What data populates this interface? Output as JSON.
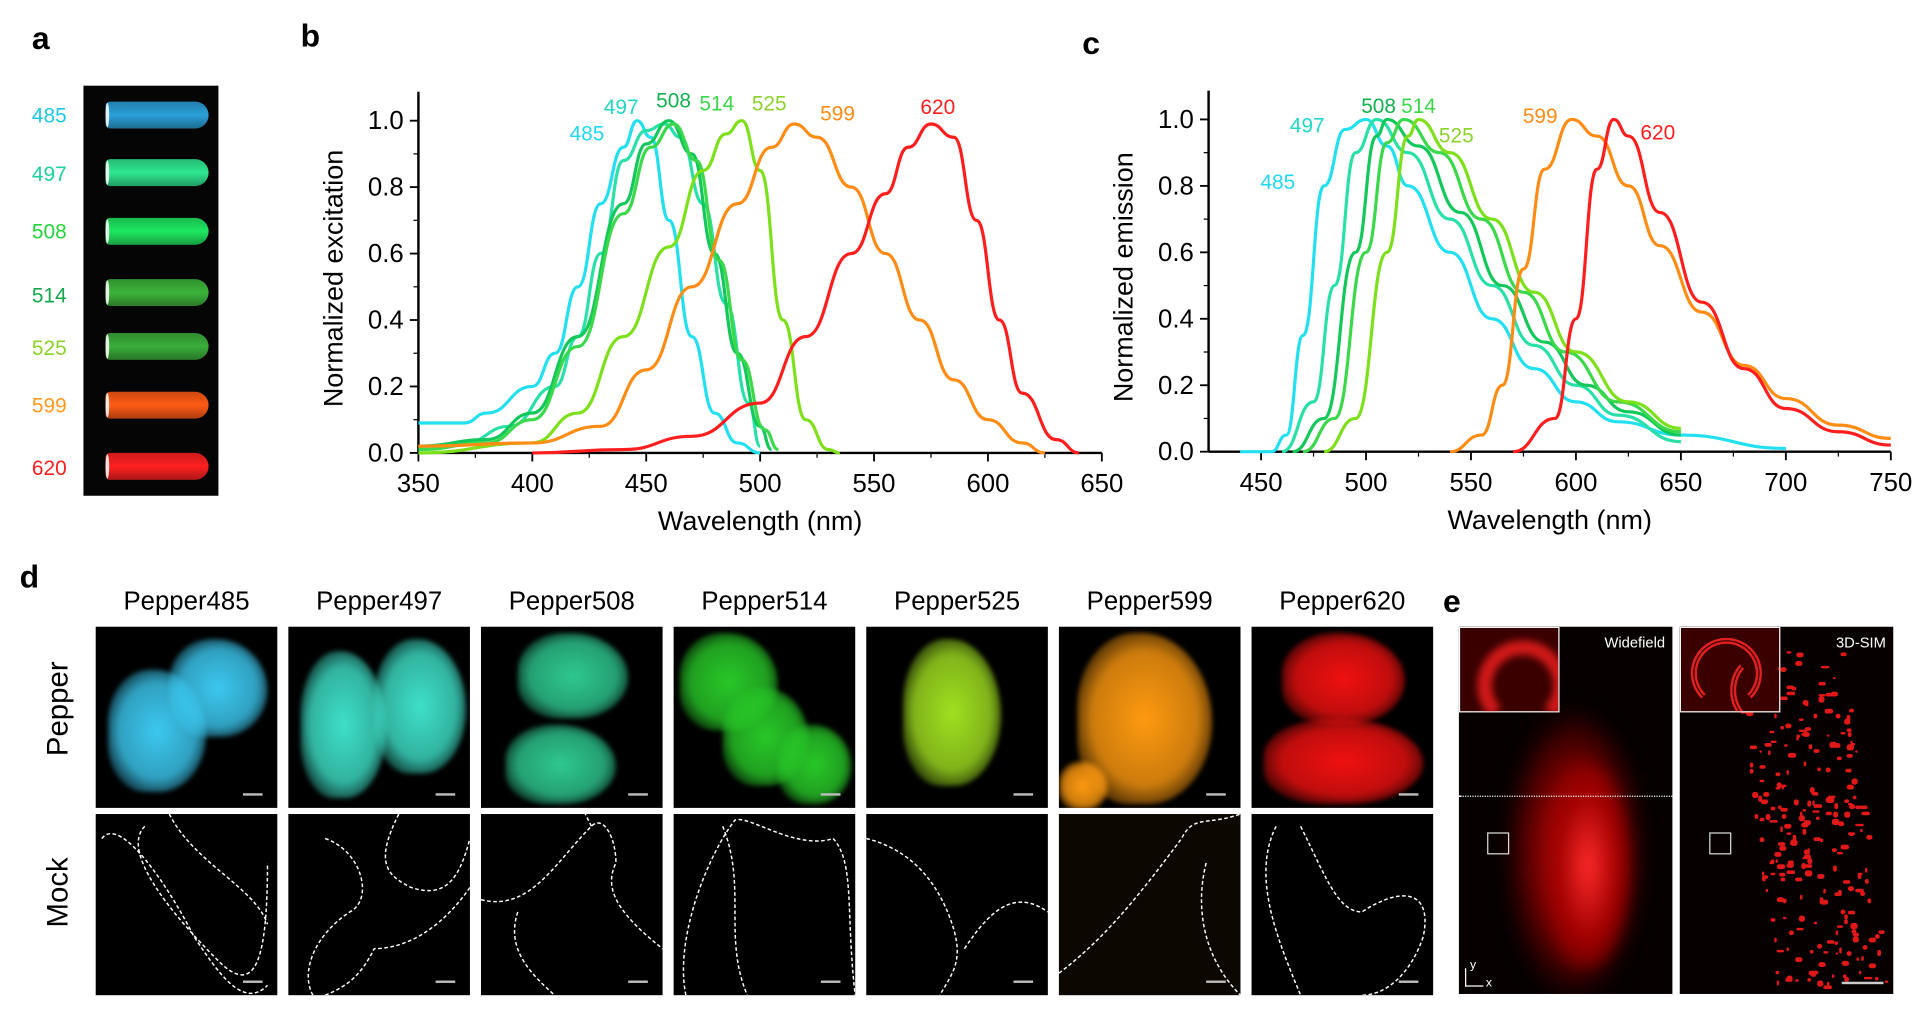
{
  "panel_labels": {
    "a": "a",
    "b": "b",
    "c": "c",
    "d": "d",
    "e": "e"
  },
  "tubes": [
    {
      "label": "485",
      "color": "#1ec8e6",
      "fill": "#2a9fd8"
    },
    {
      "label": "497",
      "color": "#1ed2a0",
      "fill": "#2ee890"
    },
    {
      "label": "508",
      "color": "#22d43a",
      "fill": "#1ee860"
    },
    {
      "label": "514",
      "color": "#12a84a",
      "fill": "#3cb43a"
    },
    {
      "label": "525",
      "color": "#8cd22a",
      "fill": "#3aae3a"
    },
    {
      "label": "599",
      "color": "#ff9a1e",
      "fill": "#ff5a14"
    },
    {
      "label": "620",
      "color": "#ff1e1e",
      "fill": "#ff2020"
    }
  ],
  "chart_data": [
    {
      "type": "line",
      "xlabel": "Wavelength (nm)",
      "ylabel": "Normalized excitation",
      "xlim": [
        350,
        650
      ],
      "ylim": [
        0,
        1.05
      ],
      "xticks": [
        350,
        400,
        450,
        500,
        550,
        600,
        650
      ],
      "yticks": [
        "0.0",
        "0.2",
        "0.4",
        "0.6",
        "0.8",
        "1.0"
      ],
      "grid": false,
      "series": [
        {
          "name": "485",
          "color": "#22e0f0",
          "points": [
            [
              350,
              0.09
            ],
            [
              370,
              0.09
            ],
            [
              380,
              0.12
            ],
            [
              400,
              0.2
            ],
            [
              410,
              0.3
            ],
            [
              420,
              0.5
            ],
            [
              430,
              0.75
            ],
            [
              440,
              0.92
            ],
            [
              446,
              1.0
            ],
            [
              452,
              0.95
            ],
            [
              460,
              0.7
            ],
            [
              470,
              0.35
            ],
            [
              480,
              0.12
            ],
            [
              490,
              0.03
            ],
            [
              500,
              0.0
            ]
          ]
        },
        {
          "name": "497",
          "color": "#28e0a8",
          "points": [
            [
              350,
              0.02
            ],
            [
              370,
              0.03
            ],
            [
              390,
              0.08
            ],
            [
              410,
              0.2
            ],
            [
              420,
              0.35
            ],
            [
              430,
              0.6
            ],
            [
              440,
              0.88
            ],
            [
              450,
              0.97
            ],
            [
              458,
              0.99
            ],
            [
              465,
              0.95
            ],
            [
              475,
              0.75
            ],
            [
              485,
              0.45
            ],
            [
              495,
              0.15
            ],
            [
              500,
              0.02
            ]
          ]
        },
        {
          "name": "508",
          "color": "#12c85a",
          "points": [
            [
              350,
              0.02
            ],
            [
              380,
              0.04
            ],
            [
              400,
              0.12
            ],
            [
              420,
              0.35
            ],
            [
              440,
              0.75
            ],
            [
              450,
              0.93
            ],
            [
              460,
              1.0
            ],
            [
              470,
              0.9
            ],
            [
              480,
              0.6
            ],
            [
              490,
              0.3
            ],
            [
              500,
              0.08
            ],
            [
              505,
              0.01
            ]
          ]
        },
        {
          "name": "514",
          "color": "#3ad84a",
          "points": [
            [
              350,
              0.01
            ],
            [
              380,
              0.03
            ],
            [
              400,
              0.1
            ],
            [
              420,
              0.32
            ],
            [
              440,
              0.72
            ],
            [
              452,
              0.92
            ],
            [
              462,
              0.99
            ],
            [
              472,
              0.88
            ],
            [
              482,
              0.58
            ],
            [
              492,
              0.28
            ],
            [
              502,
              0.07
            ],
            [
              508,
              0.01
            ]
          ]
        },
        {
          "name": "525",
          "color": "#7de01b",
          "points": [
            [
              350,
              0.0
            ],
            [
              400,
              0.03
            ],
            [
              420,
              0.12
            ],
            [
              440,
              0.35
            ],
            [
              460,
              0.62
            ],
            [
              475,
              0.85
            ],
            [
              485,
              0.96
            ],
            [
              492,
              1.0
            ],
            [
              500,
              0.85
            ],
            [
              510,
              0.4
            ],
            [
              520,
              0.1
            ],
            [
              530,
              0.01
            ],
            [
              535,
              0.0
            ]
          ]
        },
        {
          "name": "599",
          "color": "#ff8c14",
          "points": [
            [
              350,
              0.02
            ],
            [
              400,
              0.03
            ],
            [
              430,
              0.08
            ],
            [
              450,
              0.25
            ],
            [
              470,
              0.5
            ],
            [
              490,
              0.75
            ],
            [
              505,
              0.92
            ],
            [
              515,
              0.99
            ],
            [
              525,
              0.95
            ],
            [
              540,
              0.8
            ],
            [
              555,
              0.6
            ],
            [
              570,
              0.4
            ],
            [
              585,
              0.22
            ],
            [
              600,
              0.1
            ],
            [
              615,
              0.03
            ],
            [
              625,
              0.0
            ]
          ]
        },
        {
          "name": "620",
          "color": "#ff1e1e",
          "points": [
            [
              400,
              0.0
            ],
            [
              440,
              0.01
            ],
            [
              470,
              0.05
            ],
            [
              500,
              0.15
            ],
            [
              520,
              0.35
            ],
            [
              540,
              0.6
            ],
            [
              555,
              0.78
            ],
            [
              565,
              0.92
            ],
            [
              575,
              0.99
            ],
            [
              585,
              0.95
            ],
            [
              595,
              0.7
            ],
            [
              605,
              0.4
            ],
            [
              615,
              0.18
            ],
            [
              630,
              0.04
            ],
            [
              640,
              0.0
            ]
          ]
        }
      ],
      "annotations": [
        {
          "text": "485",
          "x": 424,
          "y": 0.94,
          "color": "#22d8f0"
        },
        {
          "text": "497",
          "x": 439,
          "y": 1.02,
          "color": "#22d8c8"
        },
        {
          "text": "508",
          "x": 462,
          "y": 1.04,
          "color": "#12b050"
        },
        {
          "text": "514",
          "x": 481,
          "y": 1.03,
          "color": "#3ad84a"
        },
        {
          "text": "525",
          "x": 504,
          "y": 1.03,
          "color": "#8cd22a"
        },
        {
          "text": "599",
          "x": 534,
          "y": 1.0,
          "color": "#ff8c14"
        },
        {
          "text": "620",
          "x": 578,
          "y": 1.02,
          "color": "#ff1e1e"
        }
      ]
    },
    {
      "type": "line",
      "xlabel": "Wavelength (nm)",
      "ylabel": "Normalized emission",
      "xlim": [
        425,
        750
      ],
      "ylim": [
        0,
        1.05
      ],
      "xticks": [
        450,
        500,
        550,
        600,
        650,
        700,
        750
      ],
      "yticks": [
        "0.0",
        "0.2",
        "0.4",
        "0.6",
        "0.8",
        "1.0"
      ],
      "grid": false,
      "series": [
        {
          "name": "485",
          "color": "#22e0f0",
          "points": [
            [
              440,
              0.0
            ],
            [
              455,
              0.0
            ],
            [
              462,
              0.05
            ],
            [
              470,
              0.35
            ],
            [
              480,
              0.8
            ],
            [
              490,
              0.97
            ],
            [
              500,
              1.0
            ],
            [
              510,
              0.92
            ],
            [
              520,
              0.8
            ],
            [
              540,
              0.6
            ],
            [
              560,
              0.4
            ],
            [
              580,
              0.25
            ],
            [
              600,
              0.15
            ],
            [
              620,
              0.09
            ],
            [
              650,
              0.05
            ],
            [
              700,
              0.01
            ]
          ]
        },
        {
          "name": "497",
          "color": "#28e0a8",
          "points": [
            [
              460,
              0.0
            ],
            [
              475,
              0.15
            ],
            [
              485,
              0.5
            ],
            [
              495,
              0.9
            ],
            [
              505,
              1.0
            ],
            [
              520,
              0.9
            ],
            [
              540,
              0.7
            ],
            [
              560,
              0.5
            ],
            [
              580,
              0.32
            ],
            [
              600,
              0.2
            ],
            [
              620,
              0.11
            ],
            [
              650,
              0.03
            ]
          ]
        },
        {
          "name": "508",
          "color": "#12c85a",
          "points": [
            [
              465,
              0.0
            ],
            [
              480,
              0.1
            ],
            [
              495,
              0.6
            ],
            [
              505,
              0.95
            ],
            [
              510,
              1.0
            ],
            [
              525,
              0.92
            ],
            [
              545,
              0.72
            ],
            [
              565,
              0.5
            ],
            [
              585,
              0.33
            ],
            [
              605,
              0.2
            ],
            [
              625,
              0.12
            ],
            [
              650,
              0.05
            ]
          ]
        },
        {
          "name": "514",
          "color": "#3ad84a",
          "points": [
            [
              470,
              0.0
            ],
            [
              485,
              0.1
            ],
            [
              500,
              0.6
            ],
            [
              510,
              0.93
            ],
            [
              518,
              1.0
            ],
            [
              535,
              0.9
            ],
            [
              555,
              0.7
            ],
            [
              575,
              0.48
            ],
            [
              595,
              0.3
            ],
            [
              620,
              0.15
            ],
            [
              650,
              0.06
            ]
          ]
        },
        {
          "name": "525",
          "color": "#7de01b",
          "points": [
            [
              480,
              0.0
            ],
            [
              495,
              0.1
            ],
            [
              510,
              0.6
            ],
            [
              520,
              0.95
            ],
            [
              525,
              1.0
            ],
            [
              540,
              0.9
            ],
            [
              560,
              0.7
            ],
            [
              580,
              0.48
            ],
            [
              600,
              0.3
            ],
            [
              625,
              0.15
            ],
            [
              650,
              0.07
            ]
          ]
        },
        {
          "name": "599",
          "color": "#ff8c14",
          "points": [
            [
              540,
              0.0
            ],
            [
              555,
              0.05
            ],
            [
              565,
              0.2
            ],
            [
              575,
              0.55
            ],
            [
              585,
              0.85
            ],
            [
              598,
              1.0
            ],
            [
              610,
              0.95
            ],
            [
              625,
              0.8
            ],
            [
              640,
              0.62
            ],
            [
              660,
              0.42
            ],
            [
              680,
              0.26
            ],
            [
              700,
              0.16
            ],
            [
              725,
              0.08
            ],
            [
              750,
              0.04
            ]
          ]
        },
        {
          "name": "620",
          "color": "#ff1e1e",
          "points": [
            [
              570,
              0.0
            ],
            [
              590,
              0.1
            ],
            [
              600,
              0.4
            ],
            [
              610,
              0.85
            ],
            [
              618,
              1.0
            ],
            [
              625,
              0.95
            ],
            [
              640,
              0.72
            ],
            [
              660,
              0.45
            ],
            [
              680,
              0.25
            ],
            [
              700,
              0.13
            ],
            [
              725,
              0.06
            ],
            [
              750,
              0.02
            ]
          ]
        }
      ],
      "annotations": [
        {
          "text": "485",
          "x": 458,
          "y": 0.79,
          "color": "#22d8f0"
        },
        {
          "text": "497",
          "x": 472,
          "y": 0.96,
          "color": "#22d8c8"
        },
        {
          "text": "508",
          "x": 506,
          "y": 1.02,
          "color": "#12b050"
        },
        {
          "text": "514",
          "x": 525,
          "y": 1.02,
          "color": "#3ad84a"
        },
        {
          "text": "525",
          "x": 543,
          "y": 0.93,
          "color": "#8cd22a"
        },
        {
          "text": "599",
          "x": 583,
          "y": 0.99,
          "color": "#ff8c14"
        },
        {
          "text": "620",
          "x": 639,
          "y": 0.94,
          "color": "#ff1e1e"
        }
      ]
    }
  ],
  "panel_d": {
    "row_labels": [
      "Pepper",
      "Mock"
    ],
    "columns": [
      {
        "title": "Pepper485",
        "color": "#3cc8f0"
      },
      {
        "title": "Pepper497",
        "color": "#3ee0c8"
      },
      {
        "title": "Pepper508",
        "color": "#2ec890"
      },
      {
        "title": "Pepper514",
        "color": "#28c828"
      },
      {
        "title": "Pepper525",
        "color": "#a0e020"
      },
      {
        "title": "Pepper599",
        "color": "#ff9a10"
      },
      {
        "title": "Pepper620",
        "color": "#f01010"
      }
    ]
  },
  "panel_e": {
    "panels": [
      {
        "label": "Widefield"
      },
      {
        "label": "3D-SIM"
      }
    ],
    "axis_y": "y",
    "axis_x": "x"
  }
}
